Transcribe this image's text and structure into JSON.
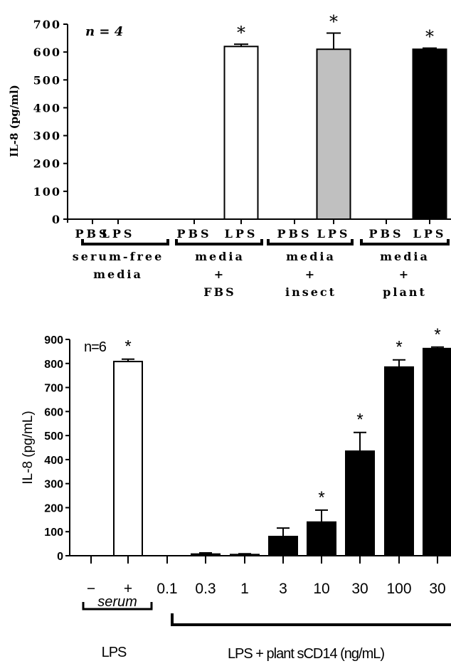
{
  "chart_data": [
    {
      "type": "bar",
      "ylabel": "IL-8 (pg/ml)",
      "annotation": "n = 4",
      "ylim": [
        0,
        700
      ],
      "yticks": [
        "0",
        "100",
        "200",
        "300",
        "400",
        "500",
        "600",
        "700"
      ],
      "bar_labels": [
        "PBS",
        "LPS",
        "PBS",
        "LPS",
        "PBS",
        "LPS",
        "PBS",
        "LPS"
      ],
      "values": [
        0,
        0,
        0,
        620,
        0,
        610,
        0,
        610
      ],
      "errors": [
        0,
        0,
        0,
        8,
        0,
        58,
        0,
        4
      ],
      "significance": [
        "",
        "",
        "",
        "*",
        "",
        "*",
        "",
        "*"
      ],
      "fill_colors": [
        "#ffffff",
        "#ffffff",
        "#ffffff",
        "#ffffff",
        "#ffffff",
        "#c0c0c0",
        "#000000",
        "#000000"
      ],
      "groups": [
        {
          "lines": [
            "serum-free",
            "media"
          ]
        },
        {
          "lines": [
            "media",
            "+",
            "FBS"
          ]
        },
        {
          "lines": [
            "media",
            "+",
            "insect"
          ]
        },
        {
          "lines": [
            "media",
            "+",
            "plant"
          ]
        }
      ]
    },
    {
      "type": "bar",
      "ylabel": "IL-8 (pg/mL)",
      "annotation": "n=6",
      "ylim": [
        0,
        900
      ],
      "yticks": [
        "0",
        "100",
        "200",
        "300",
        "400",
        "500",
        "600",
        "700",
        "800",
        "900"
      ],
      "categories": [
        "−",
        "+",
        "0.1",
        "0.3",
        "1",
        "3",
        "10",
        "30",
        "100",
        "30"
      ],
      "values": [
        0,
        808,
        0,
        7,
        5,
        80,
        140,
        435,
        785,
        862
      ],
      "errors": [
        0,
        10,
        0,
        5,
        3,
        35,
        50,
        78,
        30,
        6
      ],
      "significance": [
        "",
        "*",
        "",
        "",
        "",
        "",
        "*",
        "*",
        "*",
        "*"
      ],
      "fill_colors": [
        "#ffffff",
        "#ffffff",
        "#000000",
        "#000000",
        "#000000",
        "#000000",
        "#000000",
        "#000000",
        "#000000",
        "#000000"
      ],
      "group_serum": "serum",
      "group_lps": "LPS",
      "group_plant": "LPS + plant sCD14 (ng/mL)"
    }
  ]
}
